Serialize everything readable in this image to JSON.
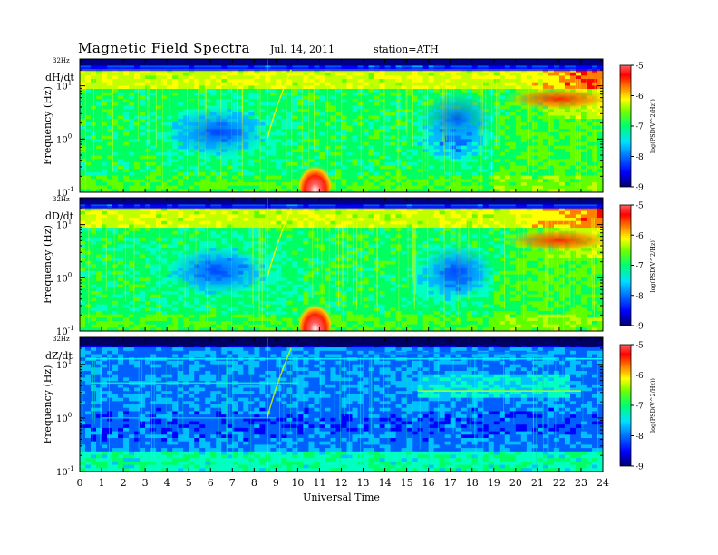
{
  "header": {
    "title": "Magnetic Field Spectra",
    "date": "Jul. 14, 2011",
    "station": "station=ATH"
  },
  "chart_data": {
    "type": "heatmap",
    "title": "Magnetic Field Spectra",
    "xlabel": "Universal Time",
    "xlim": [
      0,
      24
    ],
    "x_ticks": [
      "0",
      "1",
      "2",
      "3",
      "4",
      "5",
      "6",
      "7",
      "8",
      "9",
      "10",
      "11",
      "12",
      "13",
      "14",
      "15",
      "16",
      "17",
      "18",
      "19",
      "20",
      "21",
      "22",
      "23",
      "24"
    ],
    "ylabel": "Frequency (Hz)",
    "y_scale": "log",
    "ylim": [
      0.1,
      32
    ],
    "y_ticks": [
      {
        "base": "10",
        "exp": "-1"
      },
      {
        "base": "10",
        "exp": "0"
      },
      {
        "base": "10",
        "exp": "1"
      }
    ],
    "y_top_label": "32Hz",
    "colorbar": {
      "label": "log(PSD(V^2/Hz))",
      "range": [
        -9,
        -5
      ],
      "ticks": [
        "-5",
        "-6",
        "-7",
        "-8",
        "-9"
      ],
      "colormap": [
        "#000080",
        "#0000ff",
        "#0080ff",
        "#00ffff",
        "#00ff80",
        "#80ff00",
        "#ffff00",
        "#ff8000",
        "#ff0000",
        "#ffffff"
      ]
    },
    "panels": [
      {
        "name": "dH/dt",
        "notes": "strong 6-8 Hz band, enhanced 20-24 UT; burst near 10-11.5 UT below 0.5 Hz"
      },
      {
        "name": "dD/dt",
        "notes": "similar to dH/dt; enhanced 21-24 UT; burst near 10-11 UT below 0.5 Hz"
      },
      {
        "name": "dZ/dt",
        "notes": "mostly low power; narrow lines near 12-15 Hz; dispersed rising trace near 8.5-9.5 UT"
      }
    ]
  }
}
